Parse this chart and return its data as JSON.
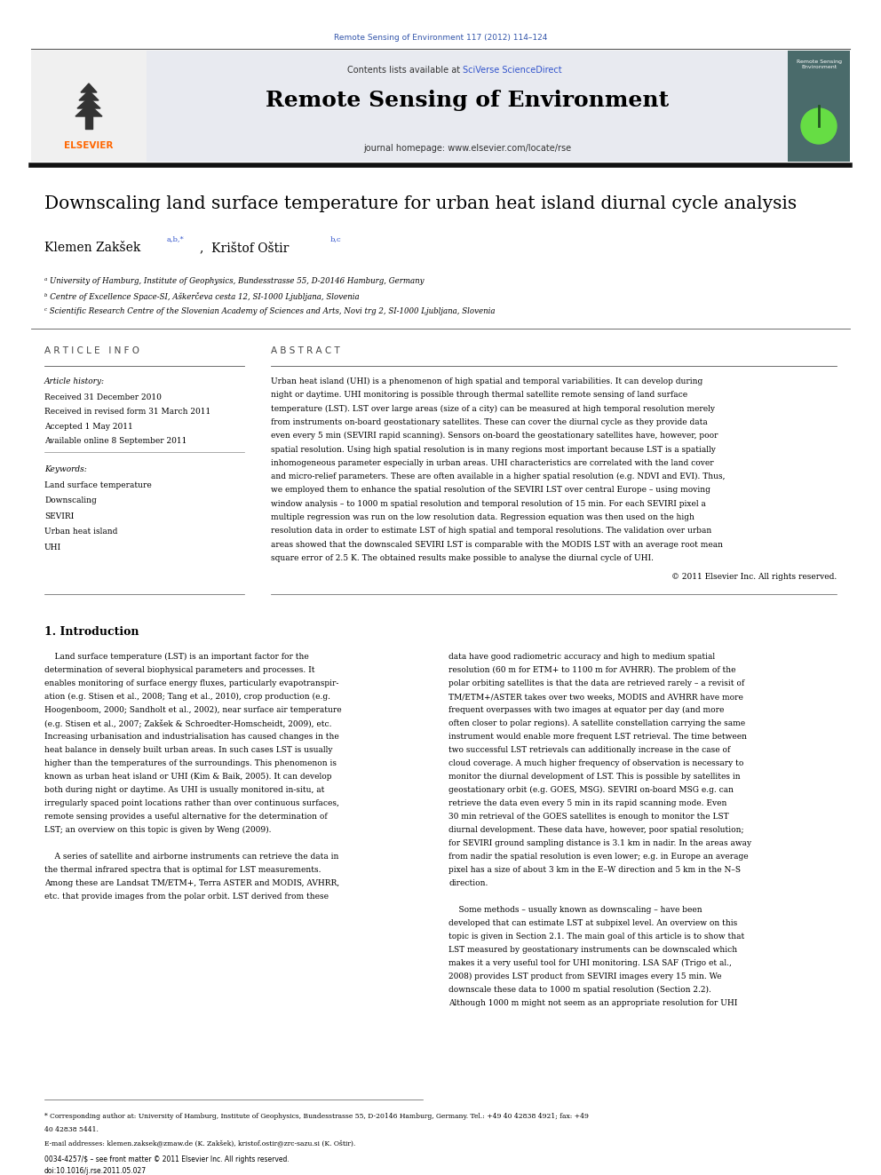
{
  "page_width": 9.92,
  "page_height": 13.23,
  "bg_color": "#ffffff",
  "journal_ref": "Remote Sensing of Environment 117 (2012) 114–124",
  "journal_ref_color": "#3355aa",
  "header_bg": "#e8eaf0",
  "journal_name": "Remote Sensing of Environment",
  "journal_homepage": "journal homepage: www.elsevier.com/locate/rse",
  "header_contents_plain": "Contents lists available at ",
  "header_contents_link": "SciVerse ScienceDirect",
  "paper_title": "Downscaling land surface temperature for urban heat island diurnal cycle analysis",
  "author1": "Klemen Zakšek",
  "author1_super": "a,b,*",
  "author2": "Krištof Oštir",
  "author2_super": "b,c",
  "affil_a": "ᵃ University of Hamburg, Institute of Geophysics, Bundesstrasse 55, D-20146 Hamburg, Germany",
  "affil_b": "ᵇ Centre of Excellence Space-SI, Aškerčeva cesta 12, SI-1000 Ljubljana, Slovenia",
  "affil_c": "ᶜ Scientific Research Centre of the Slovenian Academy of Sciences and Arts, Novi trg 2, SI-1000 Ljubljana, Slovenia",
  "article_info_title": "A R T I C L E   I N F O",
  "abstract_title": "A B S T R A C T",
  "article_history_label": "Article history:",
  "received": "Received 31 December 2010",
  "received_revised": "Received in revised form 31 March 2011",
  "accepted": "Accepted 1 May 2011",
  "available": "Available online 8 September 2011",
  "keywords_label": "Keywords:",
  "keywords": [
    "Land surface temperature",
    "Downscaling",
    "SEVIRI",
    "Urban heat island",
    "UHI"
  ],
  "copyright": "© 2011 Elsevier Inc. All rights reserved.",
  "section1_title": "1. Introduction",
  "footnote1": "* Corresponding author at: University of Hamburg, Institute of Geophysics, Bundesstrasse 55, D-20146 Hamburg, Germany. Tel.: +49 40 42838 4921; fax: +49",
  "footnote1b": "40 42838 5441.",
  "footnote2": "E-mail addresses: klemen.zaksek@zmaw.de (K. Zakšek), kristof.ostir@zrc-sazu.si (K. Oštir).",
  "footer1": "0034-4257/$ – see front matter © 2011 Elsevier Inc. All rights reserved.",
  "footer2": "doi:10.1016/j.rse.2011.05.027",
  "link_color": "#3355cc",
  "black": "#000000",
  "medium_gray": "#444444"
}
